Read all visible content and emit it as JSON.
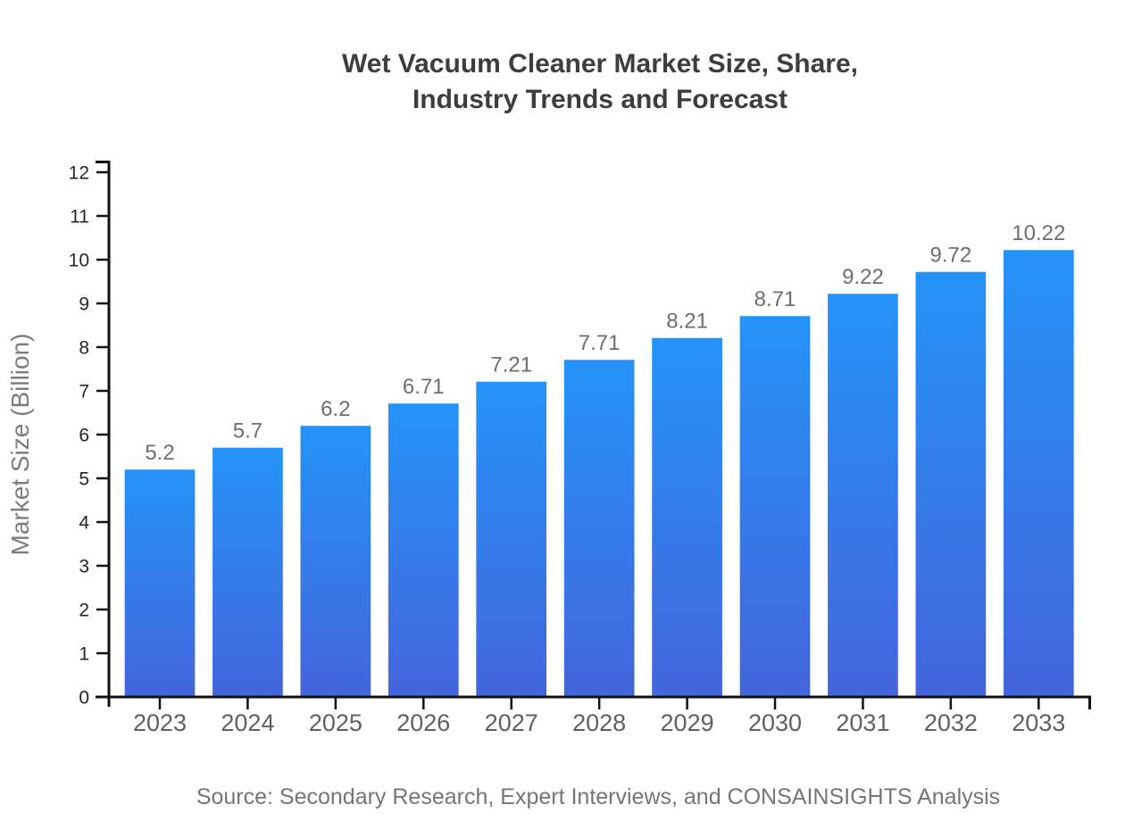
{
  "page": {
    "source": "Source: Secondary Research, Expert Interviews, and CONSAINSIGHTS Analysis"
  },
  "chart_data": {
    "type": "bar",
    "title": "Wet Vacuum Cleaner Market Size, Share, Industry Trends and Forecast",
    "title_lines": [
      "Wet Vacuum Cleaner Market Size, Share,",
      "Industry Trends and Forecast"
    ],
    "categories": [
      "2023",
      "2024",
      "2025",
      "2026",
      "2027",
      "2028",
      "2029",
      "2030",
      "2031",
      "2032",
      "2033"
    ],
    "values": [
      5.2,
      5.7,
      6.2,
      6.71,
      7.21,
      7.71,
      8.21,
      8.71,
      9.22,
      9.72,
      10.22
    ],
    "value_labels": [
      "5.2",
      "5.7",
      "6.2",
      "6.71",
      "7.21",
      "7.71",
      "8.21",
      "8.71",
      "9.22",
      "9.72",
      "10.22"
    ],
    "xlabel": "",
    "ylabel": "Market Size (Billion)",
    "ylim": [
      0,
      12
    ],
    "ytick_step": 1,
    "yticks": [
      0,
      1,
      2,
      3,
      4,
      5,
      6,
      7,
      8,
      9,
      10,
      11,
      12
    ],
    "grid": false,
    "legend": "none",
    "colors": {
      "bar_gradient_top": "#2493f8",
      "bar_gradient_bottom": "#4465dc",
      "axis": "#111111",
      "y_tick_label": "#262626",
      "x_tick_label": "#606060",
      "value_label": "#6e6e6e",
      "axis_title": "#7d7d7d",
      "title": "#3d3d3d",
      "source": "#757575"
    }
  }
}
